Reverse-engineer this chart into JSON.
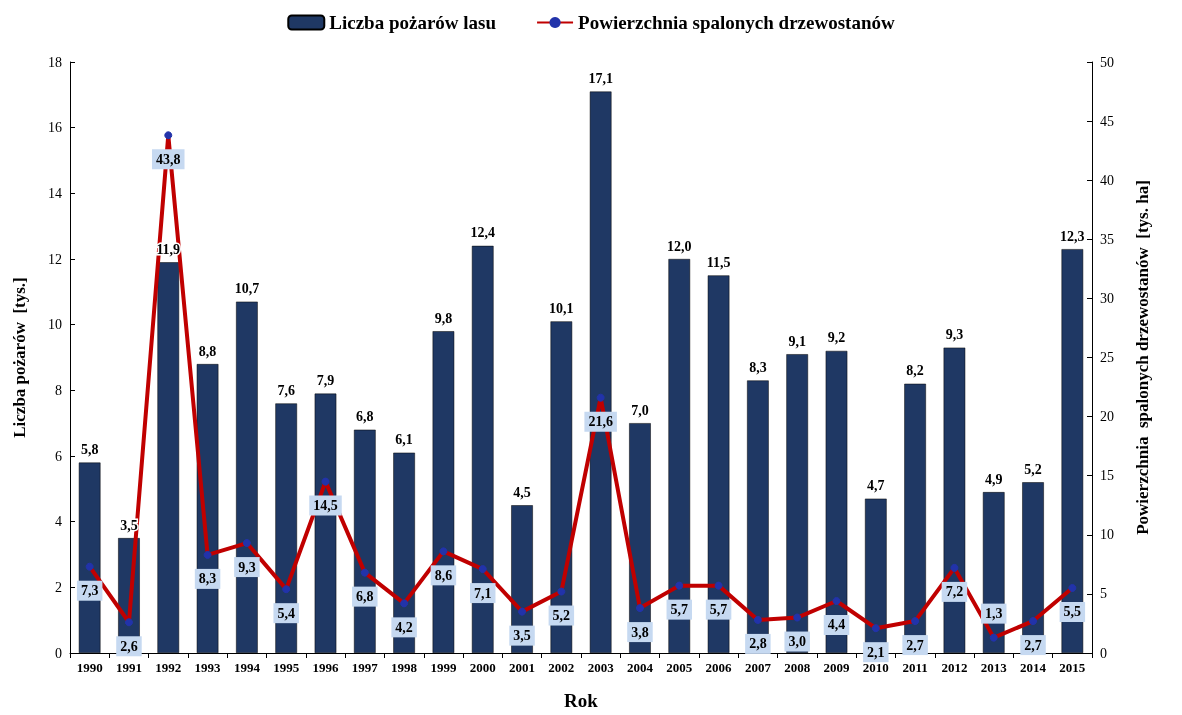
{
  "chart_data": {
    "type": "bar",
    "xlabel": "Rok",
    "ylabel": "Liczba pożarów  [tys.]",
    "y2label": "Powierzchnia  spalonych drzewostanów  [tys. ha]",
    "categories": [
      "1990",
      "1991",
      "1992",
      "1993",
      "1994",
      "1995",
      "1996",
      "1997",
      "1998",
      "1999",
      "2000",
      "2001",
      "2002",
      "2003",
      "2004",
      "2005",
      "2006",
      "2007",
      "2008",
      "2009",
      "2010",
      "2011",
      "2012",
      "2013",
      "2014",
      "2015"
    ],
    "series": [
      {
        "name": "Liczba pożarów lasu",
        "color": "#1f3864",
        "values": [
          5.8,
          3.5,
          11.9,
          8.8,
          10.7,
          7.6,
          7.9,
          6.8,
          6.1,
          9.8,
          12.4,
          4.5,
          10.1,
          17.1,
          7.0,
          12.0,
          11.5,
          8.3,
          9.1,
          9.2,
          4.7,
          8.2,
          9.3,
          4.9,
          5.2,
          12.3
        ],
        "value_labels": [
          "5,8",
          "3,5",
          "11,9",
          "8,8",
          "10,7",
          "7,6",
          "7,9",
          "6,8",
          "6,1",
          "9,8",
          "12,4",
          "4,5",
          "10,1",
          "17,1",
          "7,0",
          "12,0",
          "11,5",
          "8,3",
          "9,1",
          "9,2",
          "4,7",
          "8,2",
          "9,3",
          "4,9",
          "5,2",
          "12,3"
        ]
      },
      {
        "name": "Powierzchnia spalonych drzewostanów",
        "type": "line",
        "axis": "y2",
        "color": "#c00000",
        "values": [
          7.3,
          2.6,
          43.8,
          8.3,
          9.3,
          5.4,
          14.5,
          6.8,
          4.2,
          8.6,
          7.1,
          3.5,
          5.2,
          21.6,
          3.8,
          5.7,
          5.7,
          2.8,
          3.0,
          4.4,
          2.1,
          2.7,
          7.2,
          1.3,
          2.7,
          5.5
        ],
        "value_labels": [
          "7,3",
          "2,6",
          "43,8",
          "8,3",
          "9,3",
          "5,4",
          "14,5",
          "6,8",
          "4,2",
          "8,6",
          "7,1",
          "3,5",
          "5,2",
          "21,6",
          "3,8",
          "5,7",
          "5,7",
          "2,8",
          "3,0",
          "4,4",
          "2,1",
          "2,7",
          "7,2",
          "1,3",
          "2,7",
          "5,5"
        ]
      }
    ],
    "ylim": [
      0,
      18
    ],
    "yticks": [
      0,
      2,
      4,
      6,
      8,
      10,
      12,
      14,
      16,
      18
    ],
    "y2lim": [
      0,
      50
    ],
    "y2ticks": [
      0,
      5,
      10,
      15,
      20,
      25,
      30,
      35,
      40,
      45,
      50
    ],
    "legend": "top",
    "grid": false,
    "marker": "circle",
    "line_style": "solid"
  }
}
